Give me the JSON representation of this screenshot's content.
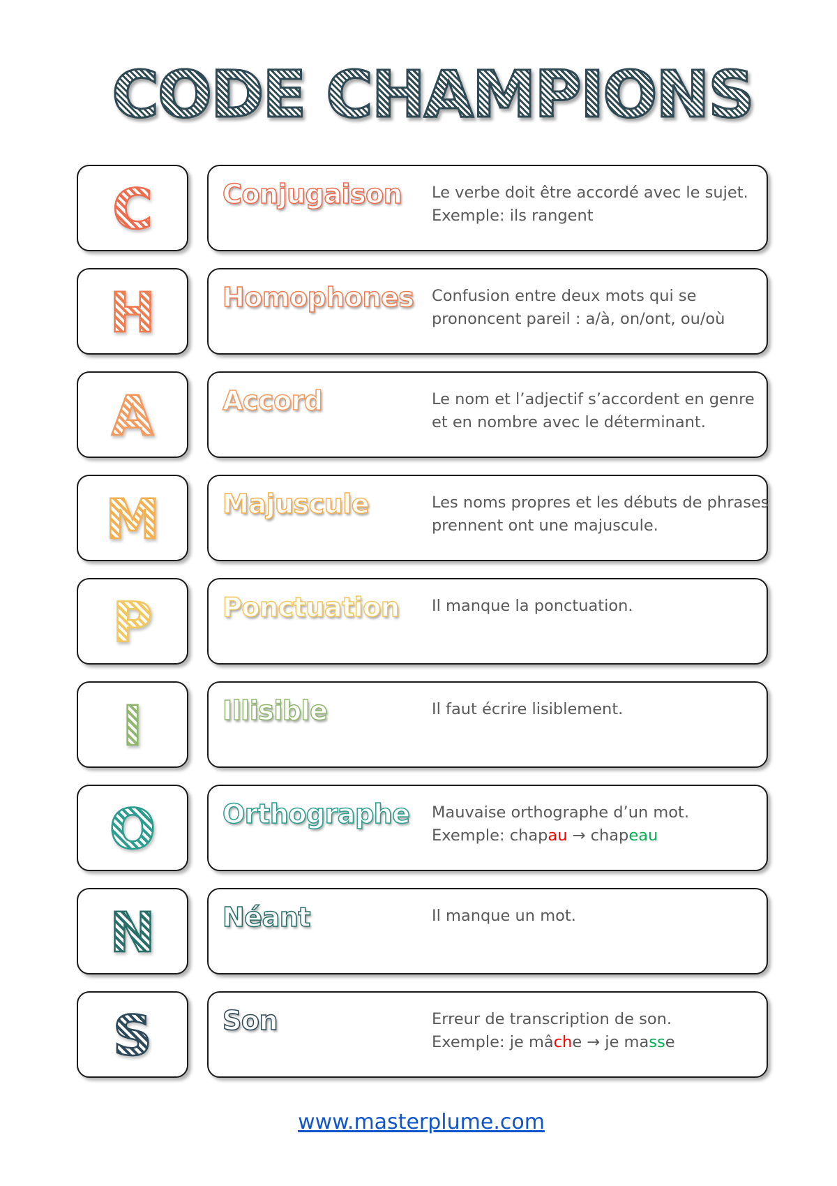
{
  "title": "CODE CHAMPIONS",
  "rows": [
    {
      "letter": "C",
      "word": "Conjugaison",
      "color": "#ee6b4d",
      "lines": [
        [
          {
            "t": "Le verbe doit être accordé avec le sujet."
          }
        ],
        [
          {
            "t": "Exemple: ils rangent"
          }
        ]
      ]
    },
    {
      "letter": "H",
      "word": "Homophones",
      "color": "#f07b4f",
      "lines": [
        [
          {
            "t": "Confusion entre deux mots qui se"
          }
        ],
        [
          {
            "t": "prononcent pareil : a/à, on/ont, ou/où"
          }
        ]
      ]
    },
    {
      "letter": "A",
      "word": "Accord",
      "color": "#f39a5c",
      "lines": [
        [
          {
            "t": "Le nom et l’adjectif s’accordent en genre"
          }
        ],
        [
          {
            "t": "et en nombre avec le déterminant."
          }
        ]
      ]
    },
    {
      "letter": "M",
      "word": "Majuscule",
      "color": "#f4b04f",
      "lines": [
        [
          {
            "t": "Les noms propres et les débuts de phrases"
          }
        ],
        [
          {
            "t": "prennent ont une majuscule."
          }
        ]
      ]
    },
    {
      "letter": "P",
      "word": "Ponctuation",
      "color": "#f1c75e",
      "lines": [
        [
          {
            "t": "Il manque la ponctuation."
          }
        ]
      ]
    },
    {
      "letter": "I",
      "word": "Illisible",
      "color": "#8fb86e",
      "lines": [
        [
          {
            "t": "Il faut écrire lisiblement."
          }
        ]
      ]
    },
    {
      "letter": "O",
      "word": "Orthographe",
      "color": "#2a9d8f",
      "lines": [
        [
          {
            "t": "Mauvaise orthographe d’un mot."
          }
        ],
        [
          {
            "t": "Exemple: chap"
          },
          {
            "t": "au",
            "c": "#ff0000"
          },
          {
            "t": " → chap"
          },
          {
            "t": "eau",
            "c": "#00b050"
          }
        ]
      ]
    },
    {
      "letter": "N",
      "word": "Néant",
      "color": "#286e69",
      "lines": [
        [
          {
            "t": "Il manque un mot."
          }
        ]
      ]
    },
    {
      "letter": "S",
      "word": "Son",
      "color": "#2e4a5a",
      "lines": [
        [
          {
            "t": "Erreur de transcription de son."
          }
        ],
        [
          {
            "t": "Exemple: je mâ"
          },
          {
            "t": "ch",
            "c": "#ff0000"
          },
          {
            "t": "e → je ma"
          },
          {
            "t": "ss",
            "c": "#00b050"
          },
          {
            "t": "e"
          }
        ]
      ]
    }
  ],
  "footer_link": "www.masterplume.com"
}
